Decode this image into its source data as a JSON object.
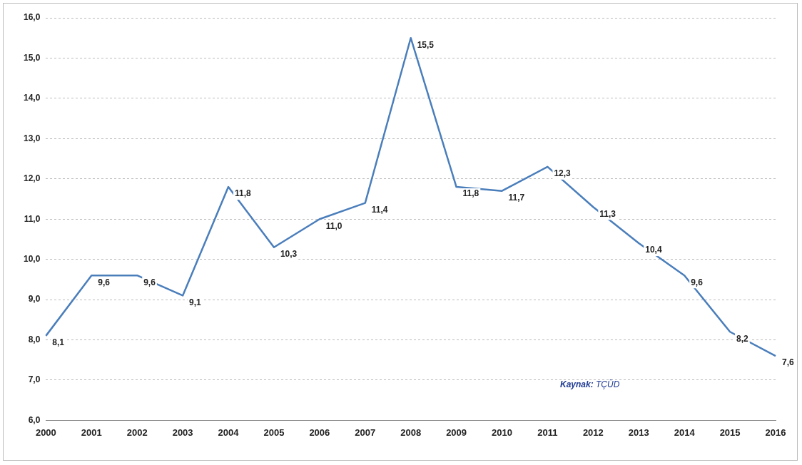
{
  "chart_data": {
    "type": "line",
    "categories": [
      "2000",
      "2001",
      "2002",
      "2003",
      "2004",
      "2005",
      "2006",
      "2007",
      "2008",
      "2009",
      "2010",
      "2011",
      "2012",
      "2013",
      "2014",
      "2015",
      "2016"
    ],
    "series": [
      {
        "color": "#4a7ebb",
        "values": [
          8.1,
          9.6,
          9.6,
          9.1,
          11.8,
          10.3,
          11.0,
          11.4,
          15.5,
          11.8,
          11.7,
          12.3,
          11.3,
          10.4,
          9.6,
          8.2,
          7.6
        ],
        "value_labels": [
          "8,1",
          "9,6",
          "9,6",
          "9,1",
          "11,8",
          "10,3",
          "11,0",
          "11,4",
          "15,5",
          "11,8",
          "11,7",
          "12,3",
          "11,3",
          "10,4",
          "9,6",
          "8,2",
          "7,6"
        ]
      }
    ],
    "ylim": [
      6,
      16
    ],
    "yticks": [
      {
        "value": 6,
        "label": "6,0"
      },
      {
        "value": 7,
        "label": "7,0"
      },
      {
        "value": 8,
        "label": "8,0"
      },
      {
        "value": 9,
        "label": "9,0"
      },
      {
        "value": 10,
        "label": "10,0"
      },
      {
        "value": 11,
        "label": "11,0"
      },
      {
        "value": 12,
        "label": "12,0"
      },
      {
        "value": 13,
        "label": "13,0"
      },
      {
        "value": 14,
        "label": "14,0"
      },
      {
        "value": 15,
        "label": "15,0"
      },
      {
        "value": 16,
        "label": "16,0"
      }
    ],
    "grid": "y",
    "legend": false,
    "marker": "none",
    "line_style": "solid",
    "annotations": [
      "Kaynak: TÇÜD"
    ]
  }
}
